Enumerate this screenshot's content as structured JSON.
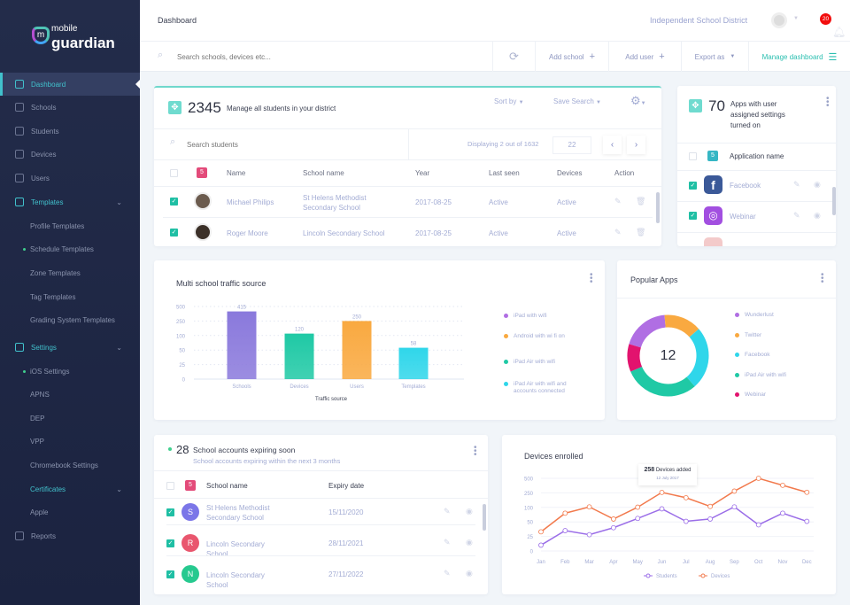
{
  "brand": {
    "line1": "mobile",
    "line2": "guardian",
    "mark": "m"
  },
  "sidebar": {
    "items": [
      {
        "label": "Dashboard",
        "icon": "layout-icon",
        "type": "main",
        "state": "active"
      },
      {
        "label": "Schools",
        "icon": "home-icon",
        "type": "main"
      },
      {
        "label": "Students",
        "icon": "graduation-cap-icon",
        "type": "main"
      },
      {
        "label": "Devices",
        "icon": "mobile-icon",
        "type": "main"
      },
      {
        "label": "Users",
        "icon": "users-icon",
        "type": "main"
      },
      {
        "label": "Templates",
        "icon": "template-icon",
        "type": "main",
        "state": "expanded"
      },
      {
        "label": "Profile Templates",
        "type": "sub"
      },
      {
        "label": "Schedule Templates",
        "type": "sub",
        "dot": true
      },
      {
        "label": "Zone Templates",
        "type": "sub"
      },
      {
        "label": "Tag Templates",
        "type": "sub"
      },
      {
        "label": "Grading System Templates",
        "type": "sub"
      },
      {
        "label": "Settings",
        "icon": "gear-icon",
        "type": "main",
        "state": "expanded"
      },
      {
        "label": "iOS Settings",
        "type": "sub",
        "dot": true
      },
      {
        "label": "APNS",
        "type": "sub"
      },
      {
        "label": "DEP",
        "type": "sub"
      },
      {
        "label": "VPP",
        "type": "sub"
      },
      {
        "label": "Chromebook Settings",
        "type": "sub"
      },
      {
        "label": "Certificates",
        "type": "sub",
        "state": "expanded"
      },
      {
        "label": "Apple",
        "type": "sub"
      },
      {
        "label": "Reports",
        "icon": "reports-icon",
        "type": "main"
      }
    ]
  },
  "header": {
    "title": "Dashboard",
    "district": "Independent School District",
    "notifications": "20"
  },
  "toolbar": {
    "search_placeholder": "Search schools, devices etc...",
    "add_school": "Add school",
    "add_user": "Add user",
    "export": "Export as",
    "manage": "Manage dashboard"
  },
  "students": {
    "count": "2345",
    "title": "Manage all students in your district",
    "sort_by": "Sort by",
    "save_search": "Save Search",
    "search_placeholder": "Search students",
    "displaying": "Displaying 2 out of 1632",
    "page": "22",
    "selected": "5",
    "columns": [
      "Name",
      "School name",
      "Year",
      "Last seen",
      "Devices",
      "Action"
    ],
    "rows": [
      {
        "name": "Michael Philips",
        "school": "St Helens Methodist Secondary  School",
        "year": "2017-08-25",
        "last_seen": "Active",
        "devices": "Active"
      },
      {
        "name": "Roger Moore",
        "school": "Lincoln Secondary School",
        "year": "2017-08-25",
        "last_seen": "Active",
        "devices": "Active"
      }
    ]
  },
  "apps": {
    "count": "70",
    "title": "Apps with user assigned settings turned on",
    "selected": "5",
    "column": "Application name",
    "rows": [
      {
        "name": "Facebook",
        "icon": "facebook-icon",
        "color": "#3b5998"
      },
      {
        "name": "Webinar",
        "icon": "podcast-icon",
        "color": "#a24fe0"
      }
    ]
  },
  "traffic": {
    "title": "Multi school traffic source"
  },
  "popular": {
    "title": "Popular Apps",
    "center": "12"
  },
  "expiring": {
    "count": "28",
    "title": "School accounts expiring soon",
    "subtitle": "School accounts expiring within the next 3 months",
    "selected": "5",
    "columns": [
      "School name",
      "Expiry date"
    ],
    "rows": [
      {
        "letter": "S",
        "color": "#7b76e8",
        "school": "St Helens Methodist Secondary  School",
        "date": "15/11/2020"
      },
      {
        "letter": "R",
        "color": "#e9566e",
        "school": "Lincoln Secondary School",
        "date": "28/11/2021"
      },
      {
        "letter": "N",
        "color": "#26c98f",
        "school": "Lincoln Secondary School",
        "date": "27/11/2022"
      }
    ]
  },
  "devices_card": {
    "title": "Devices enrolled",
    "tooltip_value": "258",
    "tooltip_label": "Devices added",
    "tooltip_date": "12 July 2017"
  },
  "chart_data": [
    {
      "type": "bar",
      "title": "Multi school traffic source",
      "xlabel": "Traffic source",
      "categories": [
        "Schools",
        "Devices",
        "Users",
        "Templates"
      ],
      "values": [
        415,
        120,
        250,
        58
      ],
      "yticks": [
        0,
        25,
        50,
        100,
        250,
        500
      ],
      "colors": [
        "#8a79dc",
        "#1fc9a5",
        "#f9a940",
        "#2fd6ea"
      ],
      "legend": [
        {
          "label": "iPad with wifi",
          "color": "#b06ee3"
        },
        {
          "label": "Android with wi fi on",
          "color": "#f9a940"
        },
        {
          "label": "iPad Air with wifi",
          "color": "#1fc9a5"
        },
        {
          "label": "iPad Air with wifi and accounts connected",
          "color": "#2fd6ea"
        }
      ],
      "grid": true,
      "legend_position": "right"
    },
    {
      "type": "pie",
      "title": "Popular Apps",
      "center_label": "12",
      "labels": [
        "Wunderlust",
        "Twitter",
        "Facebook",
        "iPad Air with wifi",
        "Webinar"
      ],
      "values": [
        19,
        15,
        25,
        30,
        11
      ],
      "colors": [
        "#b06ee3",
        "#f9a940",
        "#2fd6ea",
        "#1fc9a5",
        "#e2136e"
      ],
      "legend_position": "right"
    },
    {
      "type": "line",
      "title": "Devices enrolled",
      "categories": [
        "Jan",
        "Feb",
        "Mar",
        "Apr",
        "May",
        "Jun",
        "Jul",
        "Aug",
        "Sep",
        "Oct",
        "Nov",
        "Dec"
      ],
      "yticks": [
        0,
        25,
        50,
        100,
        250,
        500
      ],
      "series": [
        {
          "name": "Students",
          "color": "#9b6ee8",
          "values": [
            10,
            35,
            28,
            40,
            62,
            95,
            52,
            60,
            105,
            45,
            80,
            52
          ]
        },
        {
          "name": "Devices",
          "color": "#f27a4d",
          "values": [
            33,
            80,
            105,
            60,
            102,
            258,
            200,
            110,
            280,
            500,
            380,
            260
          ]
        }
      ],
      "legend_position": "bottom",
      "grid": true
    }
  ]
}
